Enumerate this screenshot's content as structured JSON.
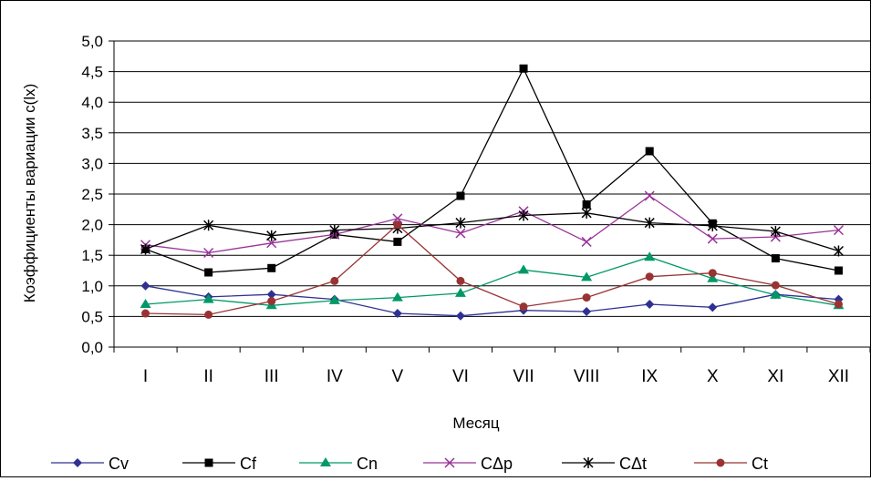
{
  "chart_data": {
    "type": "line",
    "title": "",
    "xlabel": "Месяц",
    "ylabel": "Коэффициенты вариации c(lx)",
    "categories": [
      "I",
      "II",
      "III",
      "IV",
      "V",
      "VI",
      "VII",
      "VIII",
      "IX",
      "X",
      "XI",
      "XII"
    ],
    "ylim": [
      0,
      5
    ],
    "yticks": [
      "0,0",
      "0,5",
      "1,0",
      "1,5",
      "2,0",
      "2,5",
      "3,0",
      "3,5",
      "4,0",
      "4,5",
      "5,0"
    ],
    "grid": "horizontal",
    "legend_position": "bottom",
    "series": [
      {
        "name": "Cv",
        "color": "#2e3192",
        "marker": "diamond",
        "values": [
          1.0,
          0.82,
          0.86,
          0.78,
          0.55,
          0.51,
          0.6,
          0.58,
          0.7,
          0.65,
          0.86,
          0.78
        ]
      },
      {
        "name": "Cf",
        "color": "#000000",
        "marker": "square",
        "values": [
          1.6,
          1.22,
          1.29,
          1.84,
          1.72,
          2.47,
          4.55,
          2.33,
          3.2,
          2.02,
          1.45,
          1.25
        ]
      },
      {
        "name": "Cn",
        "color": "#009966",
        "marker": "triangle",
        "values": [
          0.7,
          0.78,
          0.68,
          0.76,
          0.81,
          0.88,
          1.26,
          1.14,
          1.47,
          1.12,
          0.85,
          0.68
        ]
      },
      {
        "name": "CΔp",
        "color": "#993399",
        "marker": "x",
        "values": [
          1.67,
          1.54,
          1.7,
          1.84,
          2.1,
          1.86,
          2.22,
          1.72,
          2.47,
          1.77,
          1.8,
          1.91
        ]
      },
      {
        "name": "CΔt",
        "color": "#000000",
        "marker": "star",
        "values": [
          1.6,
          1.99,
          1.82,
          1.91,
          1.94,
          2.03,
          2.15,
          2.19,
          2.03,
          1.98,
          1.89,
          1.57
        ]
      },
      {
        "name": "Ct",
        "color": "#993333",
        "marker": "circle",
        "values": [
          0.55,
          0.53,
          0.75,
          1.08,
          2.0,
          1.08,
          0.66,
          0.81,
          1.15,
          1.21,
          1.01,
          0.7
        ]
      }
    ]
  }
}
